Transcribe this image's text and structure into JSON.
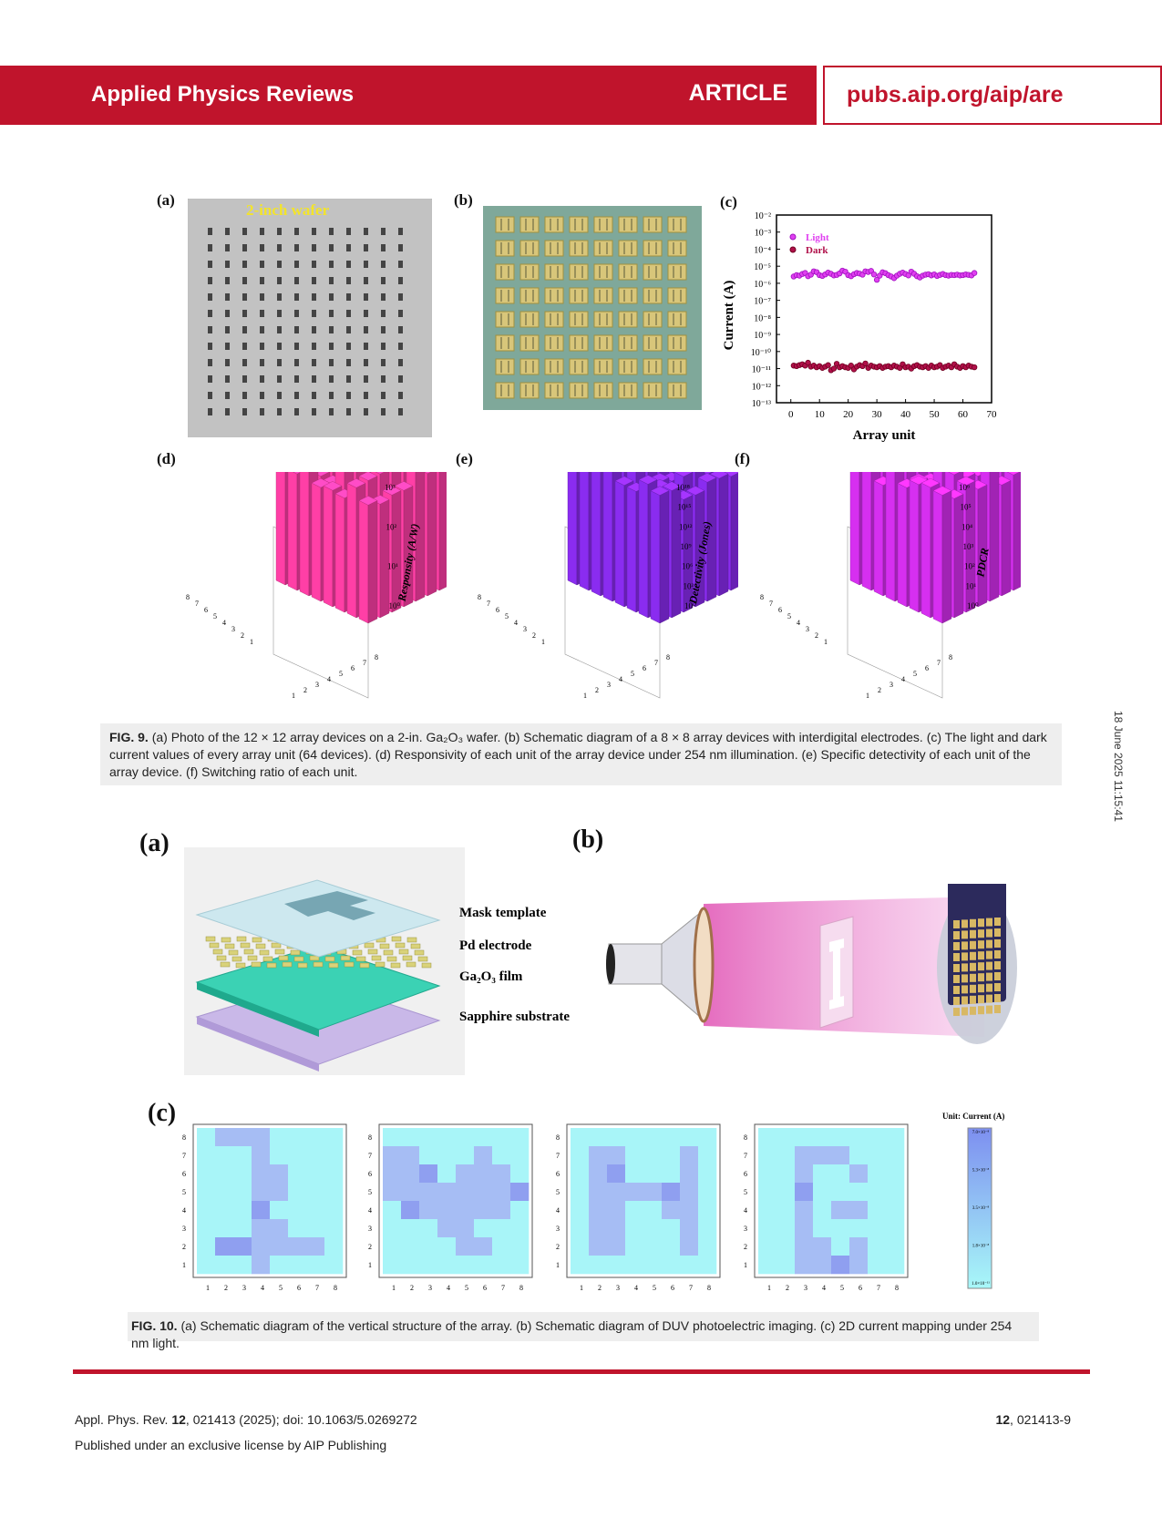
{
  "header": {
    "journal": "Applied Physics Reviews",
    "type": "ARTICLE",
    "url": "pubs.aip.org/aip/are"
  },
  "side_stamp": "18 June 2025 11:15:41",
  "fig9": {
    "labels": {
      "a": "(a)",
      "b": "(b)",
      "c": "(c)",
      "d": "(d)",
      "e": "(e)",
      "f": "(f)"
    },
    "wafer_label": "2-inch wafer",
    "bars": {
      "d_axis": "Responsity (A/W)",
      "e_axis": "Detectivity (Jones)",
      "f_axis": "PDCR",
      "d_ticks": [
        "10³",
        "10²",
        "10¹",
        "10⁰"
      ],
      "e_ticks": [
        "10¹⁸",
        "10¹⁵",
        "10¹²",
        "10⁹",
        "10⁶",
        "10³",
        "10⁰"
      ],
      "f_ticks": [
        "10⁶",
        "10⁵",
        "10⁴",
        "10³",
        "10²",
        "10¹",
        "10⁰"
      ],
      "colors": {
        "d": "#ff3fa6",
        "e": "#8a2cf0",
        "f": "#d62ff0"
      }
    },
    "caption_label": "FIG. 9.",
    "caption": "(a) Photo of the 12 × 12 array devices on a 2-in. Ga₂O₃ wafer. (b) Schematic diagram of a 8 × 8 array devices with interdigital electrodes. (c) The light and dark current values of every array unit (64 devices). (d) Responsivity of each unit of the array device under 254 nm illumination. (e) Specific detectivity of each unit of the array device. (f) Switching ratio of each unit."
  },
  "chart_data": {
    "type": "scatter",
    "title": "",
    "xlabel": "Array unit",
    "ylabel": "Current (A)",
    "xlim": [
      -5,
      70
    ],
    "ylim_log10": [
      -13,
      -2
    ],
    "y_scale": "log",
    "x_ticks": [
      "0",
      "10",
      "20",
      "30",
      "40",
      "50",
      "60",
      "70"
    ],
    "y_ticks": [
      "10⁻²",
      "10⁻³",
      "10⁻⁴",
      "10⁻⁵",
      "10⁻⁶",
      "10⁻⁷",
      "10⁻⁸",
      "10⁻⁹",
      "10⁻¹⁰",
      "10⁻¹¹",
      "10⁻¹²",
      "10⁻¹³"
    ],
    "legend_position": "top-left",
    "series": [
      {
        "name": "Light",
        "color": "#e040f0",
        "x": [
          1,
          2,
          3,
          4,
          5,
          6,
          7,
          8,
          9,
          10,
          11,
          12,
          13,
          14,
          15,
          16,
          17,
          18,
          19,
          20,
          21,
          22,
          23,
          24,
          25,
          26,
          27,
          28,
          29,
          30,
          31,
          32,
          33,
          34,
          35,
          36,
          37,
          38,
          39,
          40,
          41,
          42,
          43,
          44,
          45,
          46,
          47,
          48,
          49,
          50,
          51,
          52,
          53,
          54,
          55,
          56,
          57,
          58,
          59,
          60,
          61,
          62,
          63,
          64
        ],
        "y": [
          2.5e-06,
          3e-06,
          2.8e-06,
          3.5e-06,
          4e-06,
          2.6e-06,
          3.2e-06,
          5e-06,
          4.5e-06,
          3e-06,
          2.7e-06,
          3.3e-06,
          4.2e-06,
          3.6e-06,
          2.9e-06,
          3.1e-06,
          3.8e-06,
          5.5e-06,
          4.8e-06,
          3e-06,
          2.6e-06,
          3.4e-06,
          4e-06,
          3.7e-06,
          3.2e-06,
          5e-06,
          4.6e-06,
          5.3e-06,
          3.3e-06,
          1.6e-06,
          2.8e-06,
          4.4e-06,
          3.9e-06,
          3e-06,
          2.5e-06,
          2e-06,
          2.8e-06,
          3.6e-06,
          4.2e-06,
          3.5e-06,
          2.9e-06,
          4.8e-06,
          3.6e-06,
          2.6e-06,
          2.2e-06,
          2.8e-06,
          3.2e-06,
          3.4e-06,
          2.9e-06,
          3.3e-06,
          2.7e-06,
          3.1e-06,
          3.5e-06,
          3e-06,
          2.8e-06,
          3.1e-06,
          3e-06,
          3.2e-06,
          2.9e-06,
          3e-06,
          3.3e-06,
          3.1e-06,
          2.9e-06,
          4e-06
        ]
      },
      {
        "name": "Dark",
        "color": "#b0104a",
        "x": [
          1,
          2,
          3,
          4,
          5,
          6,
          7,
          8,
          9,
          10,
          11,
          12,
          13,
          14,
          15,
          16,
          17,
          18,
          19,
          20,
          21,
          22,
          23,
          24,
          25,
          26,
          27,
          28,
          29,
          30,
          31,
          32,
          33,
          34,
          35,
          36,
          37,
          38,
          39,
          40,
          41,
          42,
          43,
          44,
          45,
          46,
          47,
          48,
          49,
          50,
          51,
          52,
          53,
          54,
          55,
          56,
          57,
          58,
          59,
          60,
          61,
          62,
          63,
          64
        ],
        "y": [
          1.5e-11,
          1.4e-11,
          1.6e-11,
          1.8e-11,
          1.5e-11,
          2.2e-11,
          1.3e-11,
          1.5e-11,
          1.2e-11,
          1.4e-11,
          1.1e-11,
          1.3e-11,
          1.6e-11,
          8e-12,
          1e-11,
          1.9e-11,
          1.2e-11,
          1.4e-11,
          1.2e-11,
          1.1e-11,
          1.5e-11,
          9e-12,
          1.3e-11,
          1.6e-11,
          1.4e-11,
          2e-11,
          1.1e-11,
          1.5e-11,
          1.3e-11,
          1.2e-11,
          1.4e-11,
          1.1e-11,
          1.3e-11,
          1.4e-11,
          1.2e-11,
          1.5e-11,
          1.3e-11,
          1.1e-11,
          1.8e-11,
          1.2e-11,
          1.3e-11,
          1e-11,
          1.4e-11,
          1.6e-11,
          1.3e-11,
          1.2e-11,
          1.4e-11,
          1.1e-11,
          1.5e-11,
          1.2e-11,
          1.3e-11,
          1.6e-11,
          1.1e-11,
          1.3e-11,
          1.5e-11,
          1.2e-11,
          1.8e-11,
          1.3e-11,
          1.1e-11,
          1.4e-11,
          1.2e-11,
          1.5e-11,
          1.3e-11,
          1.2e-11
        ]
      }
    ]
  },
  "fig10": {
    "labels": {
      "a": "(a)",
      "b": "(b)",
      "c": "(c)"
    },
    "layers": [
      "Mask template",
      "Pd electrode",
      "Ga₂O₃ film",
      "Sapphire substrate"
    ],
    "colorbar_title": "Unit: Current (A)",
    "colorbar_ticks": [
      "7.0×10⁻⁸",
      "5.3×10⁻⁸",
      "3.5×10⁻⁸",
      "1.8×10⁻⁸",
      "1.0×10⁻¹¹"
    ],
    "map_ticks": [
      "1",
      "2",
      "3",
      "4",
      "5",
      "6",
      "7",
      "8"
    ],
    "maps": [
      [
        [
          1,
          2,
          2,
          2,
          1,
          1,
          1,
          1
        ],
        [
          1,
          1,
          1,
          2,
          1,
          1,
          1,
          1
        ],
        [
          1,
          1,
          1,
          2,
          2,
          1,
          1,
          1
        ],
        [
          1,
          1,
          1,
          2,
          2,
          1,
          1,
          1
        ],
        [
          1,
          1,
          1,
          3,
          1,
          1,
          1,
          1
        ],
        [
          1,
          1,
          1,
          2,
          2,
          1,
          1,
          1
        ],
        [
          1,
          3,
          3,
          2,
          2,
          2,
          2,
          1
        ],
        [
          1,
          1,
          1,
          2,
          1,
          1,
          1,
          1
        ]
      ],
      [
        [
          1,
          1,
          1,
          1,
          1,
          1,
          1,
          1
        ],
        [
          2,
          2,
          1,
          1,
          1,
          2,
          1,
          1
        ],
        [
          2,
          2,
          3,
          1,
          2,
          2,
          2,
          1
        ],
        [
          2,
          2,
          2,
          2,
          2,
          2,
          2,
          3
        ],
        [
          1,
          3,
          2,
          2,
          2,
          2,
          2,
          1
        ],
        [
          1,
          1,
          1,
          2,
          2,
          1,
          1,
          1
        ],
        [
          1,
          1,
          1,
          1,
          2,
          2,
          1,
          1
        ],
        [
          1,
          1,
          1,
          1,
          1,
          1,
          1,
          1
        ]
      ],
      [
        [
          1,
          1,
          1,
          1,
          1,
          1,
          1,
          1
        ],
        [
          1,
          2,
          2,
          1,
          1,
          1,
          2,
          1
        ],
        [
          1,
          2,
          3,
          1,
          1,
          1,
          2,
          1
        ],
        [
          1,
          2,
          2,
          2,
          2,
          3,
          2,
          1
        ],
        [
          1,
          2,
          2,
          1,
          1,
          2,
          2,
          1
        ],
        [
          1,
          2,
          2,
          1,
          1,
          1,
          2,
          1
        ],
        [
          1,
          2,
          2,
          1,
          1,
          1,
          2,
          1
        ],
        [
          1,
          1,
          1,
          1,
          1,
          1,
          1,
          1
        ]
      ],
      [
        [
          1,
          1,
          1,
          1,
          1,
          1,
          1,
          1
        ],
        [
          1,
          1,
          2,
          2,
          2,
          1,
          1,
          1
        ],
        [
          1,
          1,
          2,
          1,
          1,
          2,
          1,
          1
        ],
        [
          1,
          1,
          3,
          1,
          1,
          1,
          1,
          1
        ],
        [
          1,
          1,
          2,
          1,
          2,
          2,
          1,
          1
        ],
        [
          1,
          1,
          2,
          1,
          1,
          1,
          1,
          1
        ],
        [
          1,
          1,
          2,
          2,
          1,
          2,
          1,
          1
        ],
        [
          1,
          1,
          2,
          2,
          3,
          2,
          1,
          1
        ]
      ]
    ],
    "map_colors": {
      "1": "#a8f5f8",
      "2": "#a6bdf4",
      "3": "#8f9ff0"
    },
    "caption_label": "FIG. 10.",
    "caption": "(a) Schematic diagram of the vertical structure of the array. (b) Schematic diagram of DUV photoelectric imaging. (c) 2D current mapping under 254 nm light."
  },
  "footer": {
    "citation_prefix": "Appl. Phys. Rev. ",
    "citation_vol": "12",
    "citation_rest": ", 021413 (2025); doi: 10.1063/5.0269272",
    "license": "Published under an exclusive license by AIP Publishing",
    "page_vol": "12",
    "page_rest": ", 021413-9"
  }
}
